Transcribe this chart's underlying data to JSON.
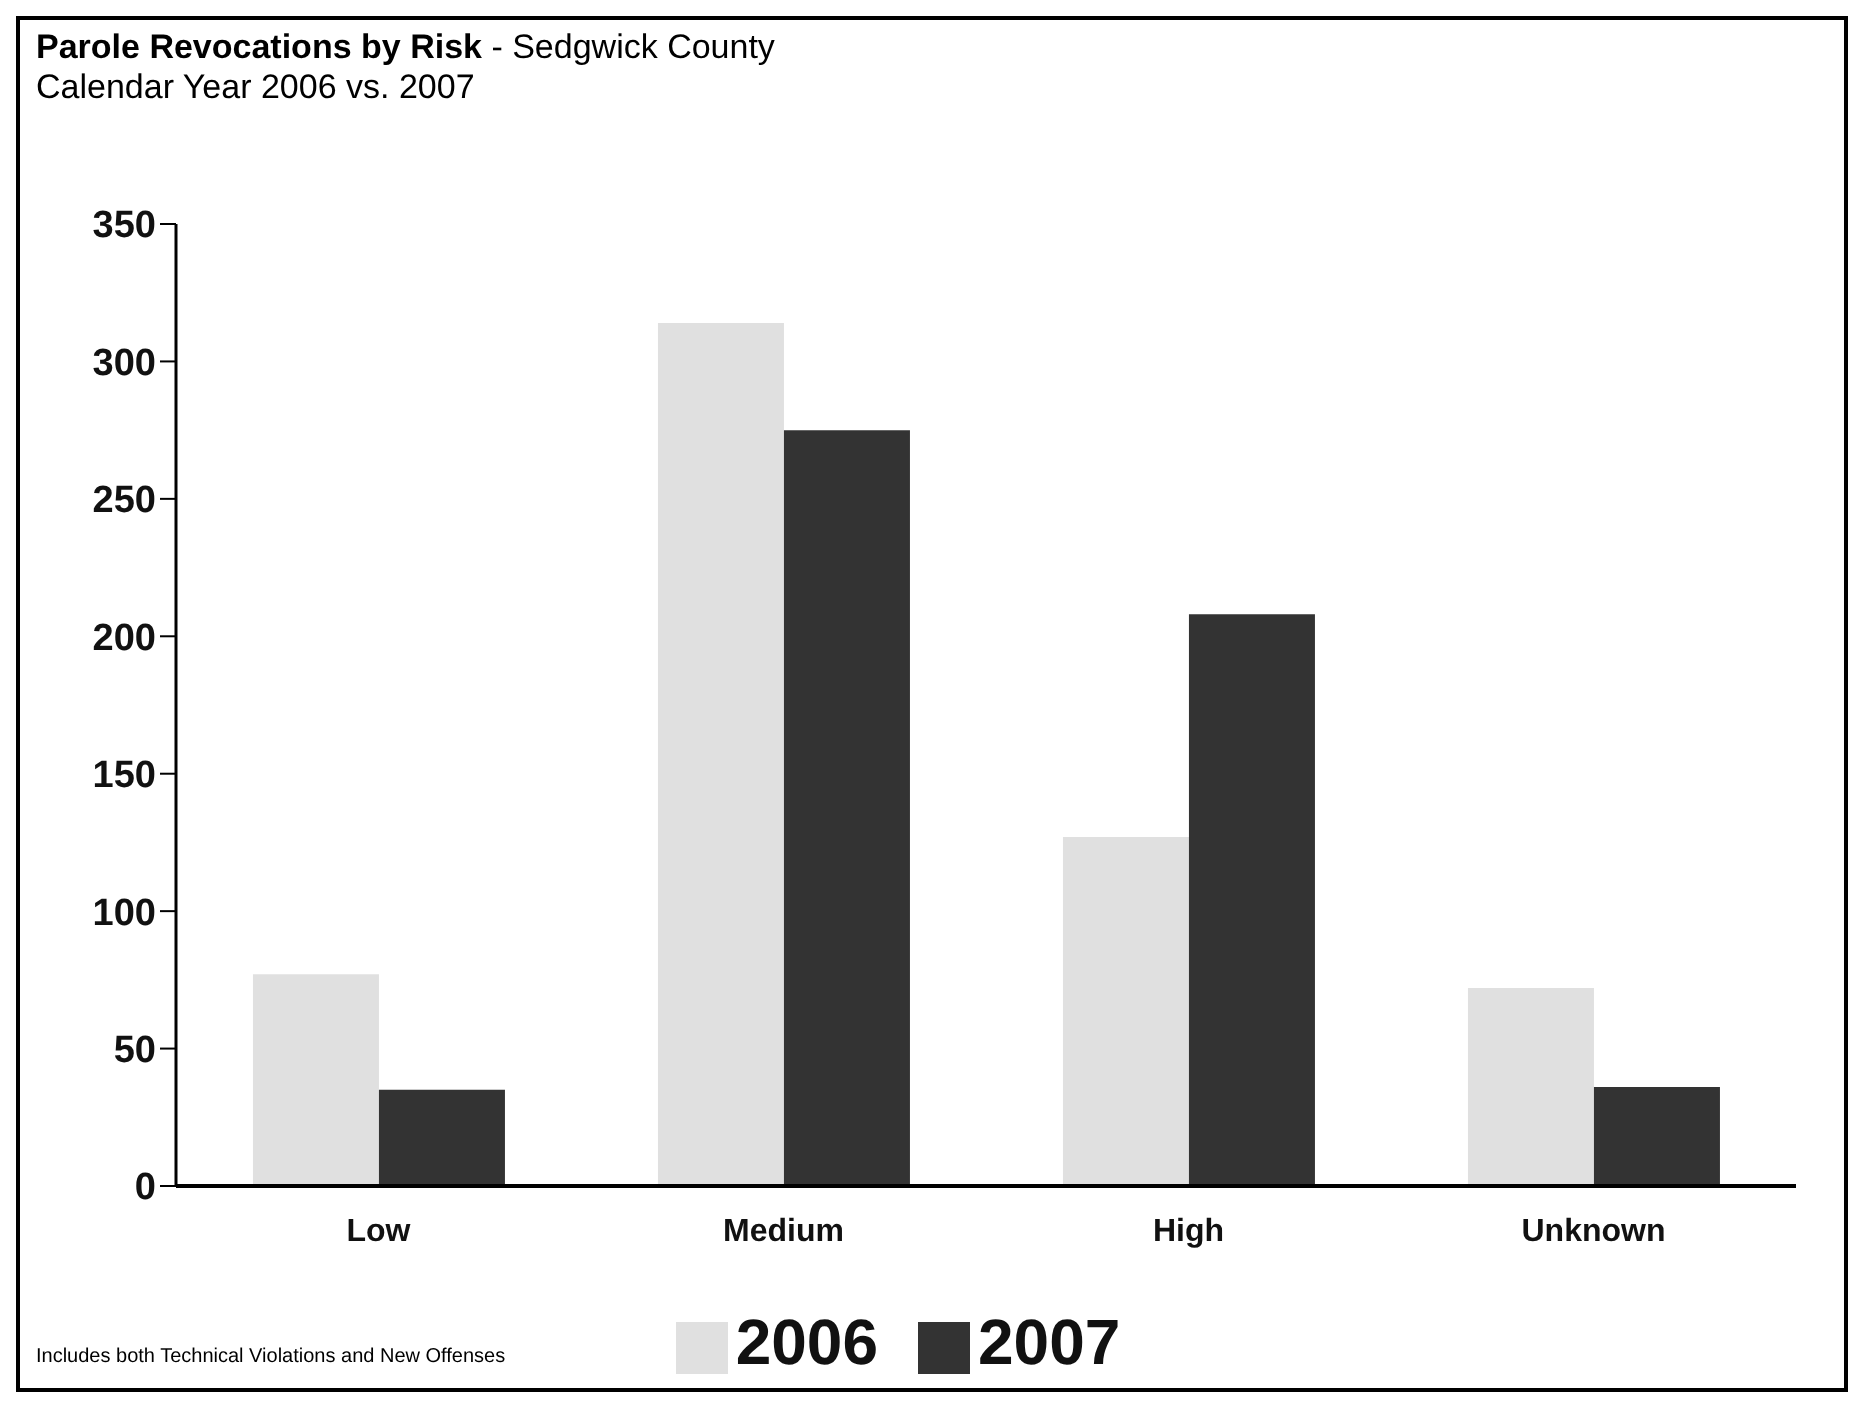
{
  "chart_data": {
    "type": "bar",
    "title": "Parole Revocations by Risk",
    "subtitle": "Calendar Year 2006 vs. 2007",
    "annotations": [
      "- Sedgwick County",
      "Includes both Technical Violations and New Offenses"
    ],
    "categories": [
      "Low",
      "Medium",
      "High",
      "Unknown"
    ],
    "series": [
      {
        "name": "2006",
        "color": "#e0e0e0",
        "values": [
          77,
          314,
          127,
          72
        ]
      },
      {
        "name": "2007",
        "color": "#333333",
        "values": [
          35,
          275,
          208,
          36
        ]
      }
    ],
    "ylim": [
      0,
      350
    ],
    "yticks": [
      0,
      50,
      100,
      150,
      200,
      250,
      300,
      350
    ],
    "grid": false,
    "legend": "bottom"
  }
}
